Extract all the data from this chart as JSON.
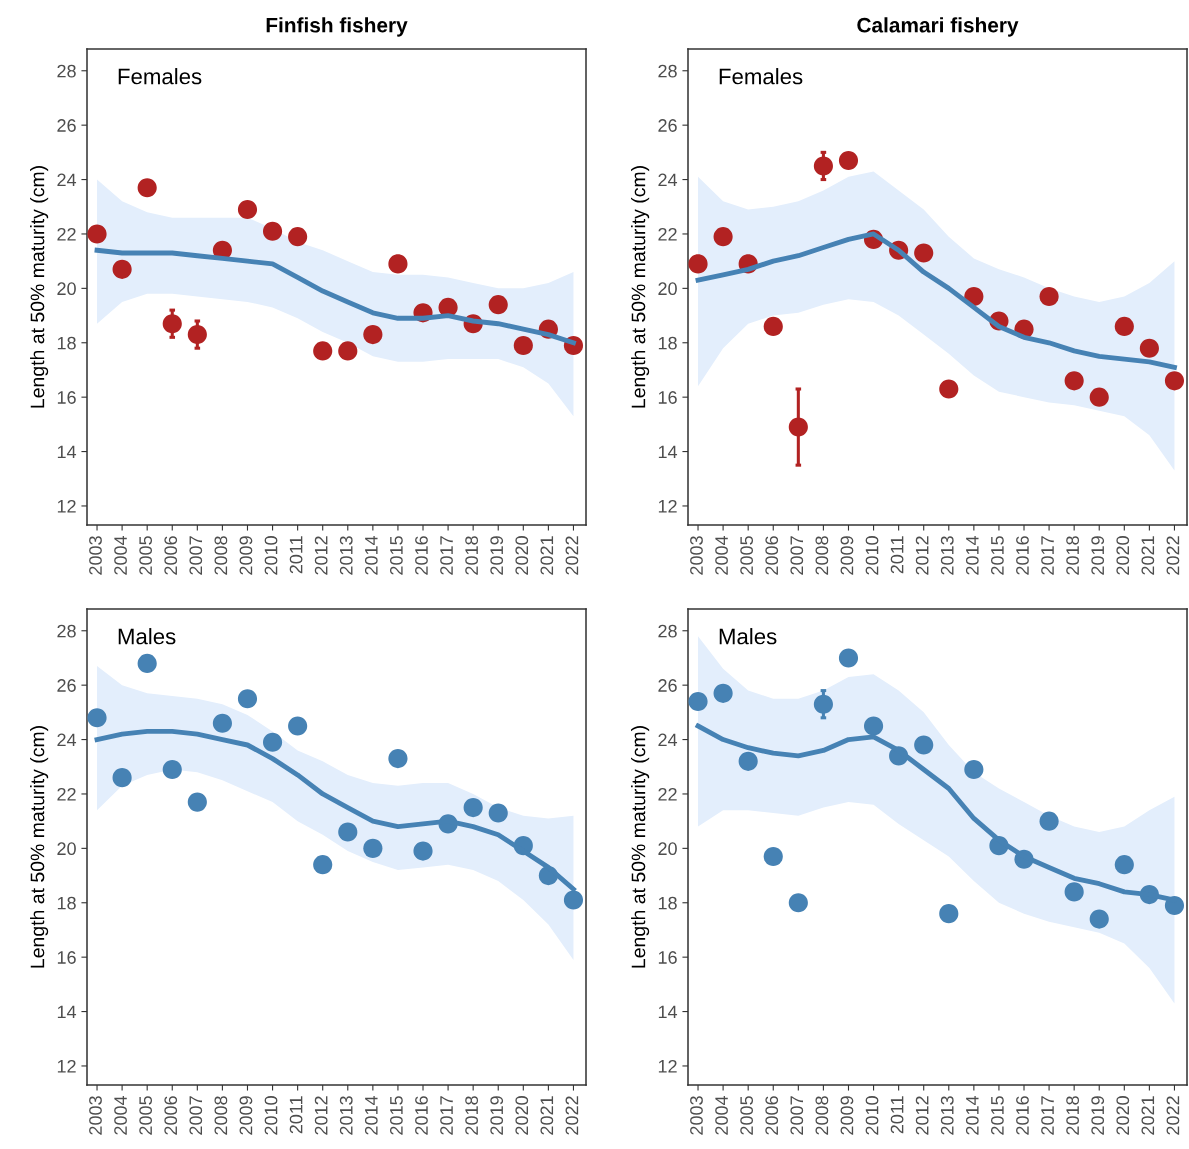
{
  "chart_data": [
    {
      "type": "scatter",
      "title": "Finfish fishery",
      "ylabel": "Length at 50% maturity (cm)",
      "annotations": [
        "Females"
      ],
      "categories": [
        "2003",
        "2004",
        "2005",
        "2006",
        "2007",
        "2008",
        "2009",
        "2010",
        "2011",
        "2012",
        "2013",
        "2014",
        "2015",
        "2016",
        "2017",
        "2018",
        "2019",
        "2020",
        "2021",
        "2022"
      ],
      "ylim": [
        11.3,
        28.8
      ],
      "yticks": [
        12,
        14,
        16,
        18,
        20,
        22,
        24,
        26,
        28
      ],
      "grid": false,
      "series": [
        {
          "type": "line",
          "color": "#4682b4",
          "values": [
            21.4,
            21.3,
            21.3,
            21.3,
            21.2,
            21.1,
            21.0,
            20.9,
            20.4,
            19.9,
            19.5,
            19.1,
            18.9,
            18.9,
            19.0,
            18.8,
            18.7,
            18.5,
            18.3,
            18.0
          ],
          "lower": [
            18.7,
            19.5,
            19.8,
            19.8,
            19.7,
            19.6,
            19.5,
            19.3,
            18.9,
            18.4,
            18.0,
            17.5,
            17.3,
            17.3,
            17.4,
            17.4,
            17.4,
            17.1,
            16.5,
            15.3
          ],
          "upper": [
            24.0,
            23.2,
            22.8,
            22.6,
            22.6,
            22.6,
            22.6,
            22.2,
            21.7,
            21.4,
            21.0,
            20.6,
            20.5,
            20.5,
            20.4,
            20.2,
            20.0,
            20.0,
            20.2,
            20.6
          ]
        },
        {
          "marker": "circle",
          "color": "#b22222",
          "values": [
            22.0,
            20.7,
            23.7,
            18.7,
            18.3,
            21.4,
            22.9,
            22.1,
            21.9,
            17.7,
            17.7,
            18.3,
            20.9,
            19.1,
            19.3,
            18.7,
            19.4,
            17.9,
            18.5,
            17.9
          ],
          "errors": [
            null,
            null,
            null,
            0.5,
            0.5,
            null,
            null,
            null,
            null,
            null,
            null,
            null,
            null,
            null,
            null,
            null,
            null,
            null,
            null,
            null
          ]
        }
      ]
    },
    {
      "type": "scatter",
      "title": "Calamari fishery",
      "ylabel": "Length at 50% maturity (cm)",
      "annotations": [
        "Females"
      ],
      "categories": [
        "2003",
        "2004",
        "2005",
        "2006",
        "2007",
        "2008",
        "2009",
        "2010",
        "2011",
        "2012",
        "2013",
        "2014",
        "2015",
        "2016",
        "2017",
        "2018",
        "2019",
        "2020",
        "2021",
        "2022"
      ],
      "ylim": [
        11.3,
        28.8
      ],
      "yticks": [
        12,
        14,
        16,
        18,
        20,
        22,
        24,
        26,
        28
      ],
      "grid": false,
      "series": [
        {
          "type": "line",
          "color": "#4682b4",
          "values": [
            20.3,
            20.5,
            20.7,
            21.0,
            21.2,
            21.5,
            21.8,
            22.0,
            21.4,
            20.6,
            20.0,
            19.3,
            18.6,
            18.2,
            18.0,
            17.7,
            17.5,
            17.4,
            17.3,
            17.1
          ],
          "lower": [
            16.4,
            17.8,
            18.7,
            19.0,
            19.1,
            19.4,
            19.6,
            19.5,
            19.0,
            18.3,
            17.6,
            16.8,
            16.2,
            16.0,
            15.8,
            15.7,
            15.5,
            15.3,
            14.6,
            13.3
          ],
          "upper": [
            24.1,
            23.2,
            22.9,
            23.0,
            23.2,
            23.6,
            24.1,
            24.3,
            23.6,
            22.9,
            21.9,
            21.1,
            20.7,
            20.4,
            20.0,
            19.7,
            19.5,
            19.7,
            20.2,
            21.0
          ]
        },
        {
          "marker": "circle",
          "color": "#b22222",
          "values": [
            20.9,
            21.9,
            20.9,
            18.6,
            14.9,
            24.5,
            24.7,
            21.8,
            21.4,
            21.3,
            16.3,
            19.7,
            18.8,
            18.5,
            19.7,
            16.6,
            16.0,
            18.6,
            17.8,
            16.6
          ],
          "errors": [
            null,
            null,
            null,
            null,
            1.4,
            0.5,
            null,
            null,
            null,
            null,
            null,
            null,
            null,
            null,
            null,
            null,
            null,
            null,
            null,
            null
          ]
        }
      ]
    },
    {
      "type": "scatter",
      "ylabel": "Length at 50% maturity (cm)",
      "annotations": [
        "Males"
      ],
      "categories": [
        "2003",
        "2004",
        "2005",
        "2006",
        "2007",
        "2008",
        "2009",
        "2010",
        "2011",
        "2012",
        "2013",
        "2014",
        "2015",
        "2016",
        "2017",
        "2018",
        "2019",
        "2020",
        "2021",
        "2022"
      ],
      "ylim": [
        11.3,
        28.8
      ],
      "yticks": [
        12,
        14,
        16,
        18,
        20,
        22,
        24,
        26,
        28
      ],
      "grid": false,
      "series": [
        {
          "type": "line",
          "color": "#4682b4",
          "values": [
            24.0,
            24.2,
            24.3,
            24.3,
            24.2,
            24.0,
            23.8,
            23.3,
            22.7,
            22.0,
            21.5,
            21.0,
            20.8,
            20.9,
            21.0,
            20.8,
            20.5,
            19.9,
            19.3,
            18.5
          ],
          "lower": [
            21.4,
            22.3,
            22.7,
            22.9,
            22.8,
            22.5,
            22.1,
            21.7,
            21.0,
            20.5,
            19.9,
            19.5,
            19.2,
            19.3,
            19.4,
            19.2,
            18.8,
            18.1,
            17.2,
            15.9
          ],
          "upper": [
            26.7,
            26.0,
            25.7,
            25.6,
            25.5,
            25.3,
            24.9,
            24.3,
            23.6,
            23.2,
            22.7,
            22.4,
            22.3,
            22.4,
            22.4,
            22.0,
            21.5,
            21.2,
            21.1,
            21.2
          ]
        },
        {
          "marker": "circle",
          "color": "#4682b4",
          "values": [
            24.8,
            22.6,
            26.8,
            22.9,
            21.7,
            24.6,
            25.5,
            23.9,
            24.5,
            19.4,
            20.6,
            20.0,
            23.3,
            19.9,
            20.9,
            21.5,
            21.3,
            20.1,
            19.0,
            18.1
          ]
        }
      ]
    },
    {
      "type": "scatter",
      "ylabel": "Length at 50% maturity (cm)",
      "annotations": [
        "Males"
      ],
      "categories": [
        "2003",
        "2004",
        "2005",
        "2006",
        "2007",
        "2008",
        "2009",
        "2010",
        "2011",
        "2012",
        "2013",
        "2014",
        "2015",
        "2016",
        "2017",
        "2018",
        "2019",
        "2020",
        "2021",
        "2022"
      ],
      "ylim": [
        11.3,
        28.8
      ],
      "yticks": [
        12,
        14,
        16,
        18,
        20,
        22,
        24,
        26,
        28
      ],
      "grid": false,
      "series": [
        {
          "type": "line",
          "color": "#4682b4",
          "values": [
            24.5,
            24.0,
            23.7,
            23.5,
            23.4,
            23.6,
            24.0,
            24.1,
            23.6,
            22.9,
            22.2,
            21.1,
            20.3,
            19.7,
            19.3,
            18.9,
            18.7,
            18.4,
            18.3,
            18.1
          ],
          "lower": [
            20.8,
            21.4,
            21.4,
            21.3,
            21.2,
            21.5,
            21.7,
            21.6,
            20.9,
            20.3,
            19.7,
            18.8,
            18.0,
            17.6,
            17.3,
            17.1,
            16.9,
            16.5,
            15.6,
            14.3
          ],
          "upper": [
            27.8,
            26.6,
            25.8,
            25.5,
            25.5,
            25.8,
            26.3,
            26.4,
            25.8,
            25.0,
            23.8,
            22.8,
            22.2,
            21.7,
            21.2,
            20.8,
            20.6,
            20.8,
            21.4,
            21.9
          ]
        },
        {
          "marker": "circle",
          "color": "#4682b4",
          "values": [
            25.4,
            25.7,
            23.2,
            19.7,
            18.0,
            25.3,
            27.0,
            24.5,
            23.4,
            23.8,
            17.6,
            22.9,
            20.1,
            19.6,
            21.0,
            18.4,
            17.4,
            19.4,
            18.3,
            17.9
          ],
          "errors": [
            null,
            null,
            null,
            null,
            null,
            0.5,
            null,
            null,
            null,
            null,
            null,
            null,
            null,
            null,
            null,
            null,
            null,
            null,
            null,
            null
          ]
        }
      ]
    }
  ]
}
